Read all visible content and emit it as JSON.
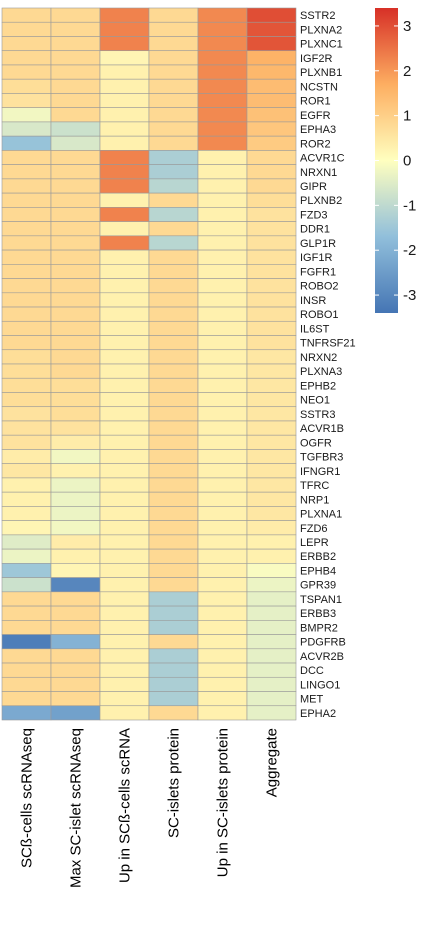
{
  "chart_data": {
    "type": "heatmap",
    "columns": [
      "SCß-cells scRNAseq",
      "Max SC-islet scRNAseq",
      "Up in SCß-cells scRNA",
      "SC-islets protein",
      "Up in SC-islets protein",
      "Aggregate"
    ],
    "rows": [
      "SSTR2",
      "PLXNA2",
      "PLXNC1",
      "IGF2R",
      "PLXNB1",
      "NCSTN",
      "ROR1",
      "EGFR",
      "EPHA3",
      "ROR2",
      "ACVR1C",
      "NRXN1",
      "GIPR",
      "PLXNB2",
      "FZD3",
      "DDR1",
      "GLP1R",
      "IGF1R",
      "FGFR1",
      "ROBO2",
      "INSR",
      "ROBO1",
      "IL6ST",
      "TNFRSF21",
      "NRXN2",
      "PLXNA3",
      "EPHB2",
      "NEO1",
      "SSTR3",
      "ACVR1B",
      "OGFR",
      "TGFBR3",
      "IFNGR1",
      "TFRC",
      "NRP1",
      "PLXNA1",
      "FZD6",
      "LEPR",
      "ERBB2",
      "EPHB4",
      "GPR39",
      "TSPAN1",
      "ERBB3",
      "BMPR2",
      "PDGFRB",
      "ACVR2B",
      "DCC",
      "LINGO1",
      "MET",
      "EPHA2"
    ],
    "values": [
      [
        0.8,
        0.8,
        2.3,
        0.8,
        2.2,
        3.0
      ],
      [
        0.8,
        0.8,
        2.3,
        0.8,
        2.2,
        2.9
      ],
      [
        0.8,
        0.8,
        2.3,
        0.8,
        2.2,
        2.9
      ],
      [
        0.8,
        0.8,
        0.2,
        0.8,
        2.2,
        1.6
      ],
      [
        0.8,
        0.8,
        0.3,
        0.8,
        2.2,
        1.5
      ],
      [
        0.7,
        0.8,
        0.3,
        0.8,
        2.2,
        1.4
      ],
      [
        0.6,
        0.8,
        0.3,
        0.8,
        2.2,
        1.4
      ],
      [
        -0.2,
        0.8,
        0.3,
        0.8,
        2.2,
        1.3
      ],
      [
        -0.6,
        -0.8,
        0.3,
        0.8,
        2.2,
        1.2
      ],
      [
        -1.6,
        -0.6,
        0.3,
        0.8,
        2.2,
        1.1
      ],
      [
        0.8,
        0.8,
        2.3,
        -1.3,
        0.3,
        0.8
      ],
      [
        0.8,
        0.8,
        2.3,
        -1.3,
        0.3,
        0.8
      ],
      [
        0.8,
        0.8,
        2.3,
        -1.1,
        0.3,
        0.8
      ],
      [
        0.8,
        0.8,
        0.3,
        0.8,
        0.3,
        0.7
      ],
      [
        0.8,
        0.8,
        2.3,
        -1.1,
        0.3,
        0.6
      ],
      [
        0.8,
        0.8,
        0.3,
        0.8,
        0.3,
        0.6
      ],
      [
        0.8,
        0.8,
        2.3,
        -1.1,
        0.3,
        0.6
      ],
      [
        0.8,
        0.8,
        0.3,
        0.8,
        0.3,
        0.6
      ],
      [
        0.8,
        0.8,
        0.3,
        0.8,
        0.3,
        0.6
      ],
      [
        0.8,
        0.8,
        0.3,
        0.8,
        0.3,
        0.6
      ],
      [
        0.8,
        0.8,
        0.3,
        0.8,
        0.3,
        0.6
      ],
      [
        0.8,
        0.8,
        0.3,
        0.8,
        0.3,
        0.6
      ],
      [
        0.8,
        0.8,
        0.3,
        0.8,
        0.3,
        0.6
      ],
      [
        0.8,
        0.8,
        0.3,
        0.8,
        0.3,
        0.6
      ],
      [
        0.7,
        0.8,
        0.3,
        0.8,
        0.3,
        0.5
      ],
      [
        0.7,
        0.8,
        0.3,
        0.8,
        0.3,
        0.5
      ],
      [
        0.7,
        0.7,
        0.3,
        0.8,
        0.3,
        0.5
      ],
      [
        0.7,
        0.7,
        0.3,
        0.8,
        0.3,
        0.5
      ],
      [
        0.6,
        0.7,
        0.3,
        0.8,
        0.3,
        0.5
      ],
      [
        0.6,
        0.6,
        0.3,
        0.8,
        0.3,
        0.5
      ],
      [
        0.6,
        0.4,
        0.3,
        0.8,
        0.3,
        0.5
      ],
      [
        0.4,
        -0.2,
        0.3,
        0.8,
        0.3,
        0.5
      ],
      [
        0.5,
        0.3,
        0.3,
        0.8,
        0.3,
        0.5
      ],
      [
        0.3,
        -0.3,
        0.3,
        0.8,
        0.3,
        0.5
      ],
      [
        0.3,
        -0.3,
        0.3,
        0.8,
        0.3,
        0.5
      ],
      [
        0.3,
        -0.3,
        0.3,
        0.8,
        0.3,
        0.5
      ],
      [
        0.2,
        -0.2,
        0.3,
        0.8,
        0.3,
        0.4
      ],
      [
        -0.5,
        0.4,
        0.3,
        0.8,
        0.3,
        0.3
      ],
      [
        -0.3,
        0.3,
        0.3,
        0.8,
        0.3,
        0.3
      ],
      [
        -1.5,
        0.2,
        0.3,
        0.8,
        0.3,
        -0.1
      ],
      [
        -0.8,
        -3.0,
        0.3,
        0.8,
        0.3,
        -0.3
      ],
      [
        0.8,
        0.8,
        0.3,
        -1.3,
        0.3,
        -0.4
      ],
      [
        0.8,
        0.8,
        0.3,
        -1.3,
        0.3,
        -0.4
      ],
      [
        0.8,
        0.8,
        0.3,
        -1.3,
        0.3,
        -0.4
      ],
      [
        -3.2,
        -2.0,
        0.3,
        0.8,
        0.3,
        -0.4
      ],
      [
        0.8,
        0.8,
        0.3,
        -1.3,
        0.3,
        -0.4
      ],
      [
        0.8,
        0.8,
        0.3,
        -1.3,
        0.3,
        -0.4
      ],
      [
        0.8,
        0.8,
        0.3,
        -1.3,
        0.3,
        -0.4
      ],
      [
        0.8,
        0.8,
        0.3,
        -1.3,
        0.3,
        -0.4
      ],
      [
        -2.2,
        -2.4,
        0.3,
        0.8,
        0.3,
        -0.4
      ]
    ],
    "legend": {
      "ticks": [
        3,
        2,
        1,
        0,
        -1,
        -2,
        -3
      ],
      "tick_labels": [
        "3",
        "2",
        "1",
        "0",
        "-1",
        "-2",
        "-3"
      ],
      "range": [
        -3.4,
        3.4
      ],
      "placement": "top-right"
    },
    "color_scale": {
      "low": "#4575b4",
      "mid_low": "#91bfdb",
      "mid": "#ffffbf",
      "mid_high": "#fdae61",
      "high": "#d73027"
    },
    "grid": true
  }
}
